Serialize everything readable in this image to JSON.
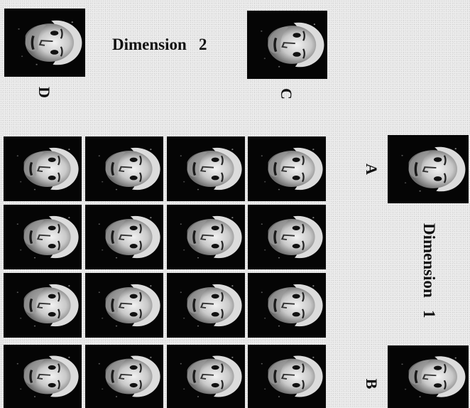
{
  "labels": {
    "dimension_1": "Dimension   1",
    "dimension_2": "Dimension   2",
    "a": "A",
    "b": "B",
    "c": "C",
    "d": "D"
  },
  "icons": {
    "face": "face-photo-icon"
  },
  "grid": {
    "rows": 4,
    "columns": 4
  }
}
